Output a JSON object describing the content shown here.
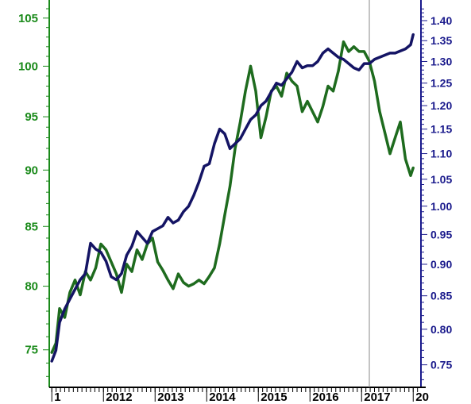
{
  "chart_data": {
    "type": "line",
    "grid": false,
    "legend": "none",
    "colors": {
      "left_axis": "#1a8a1a",
      "right_axis": "#1a1a8c",
      "green_series": "#1e6b1e",
      "navy_series": "#141464",
      "marker_line": "#888888"
    },
    "left_axis": {
      "ticks": [
        "75",
        "80",
        "85",
        "90",
        "95",
        "100",
        "105"
      ],
      "tick_values": [
        75,
        80,
        85,
        90,
        95,
        100,
        105
      ],
      "scale": "log",
      "range": [
        72.2,
        106.6
      ]
    },
    "right_axis": {
      "ticks": [
        "0.75",
        "0.80",
        "0.85",
        "0.90",
        "0.95",
        "1.00",
        "1.05",
        "1.10",
        "1.15",
        "1.20",
        "1.25",
        "1.30",
        "1.35",
        "1.40"
      ],
      "tick_values": [
        0.75,
        0.8,
        0.85,
        0.9,
        0.95,
        1.0,
        1.05,
        1.1,
        1.15,
        1.2,
        1.25,
        1.3,
        1.35,
        1.4
      ],
      "scale": "log",
      "range": [
        0.72,
        1.445
      ]
    },
    "x_axis": {
      "labels": [
        "1",
        "2012",
        "2013",
        "2014",
        "2015",
        "2016",
        "2017",
        "20"
      ],
      "label_dates": [
        2011.0,
        2012.0,
        2013.0,
        2014.0,
        2015.0,
        2016.0,
        2017.0,
        2018.0
      ],
      "range": [
        2010.95,
        2018.15
      ]
    },
    "annotations": {
      "vertical_line_at": 2017.15
    },
    "series": [
      {
        "axis": "left",
        "color": "#1e6b1e",
        "x": [
          2011.0,
          2011.08,
          2011.15,
          2011.25,
          2011.35,
          2011.45,
          2011.55,
          2011.65,
          2011.75,
          2011.85,
          2011.95,
          2012.05,
          2012.15,
          2012.25,
          2012.35,
          2012.45,
          2012.55,
          2012.65,
          2012.75,
          2012.85,
          2012.95,
          2013.05,
          2013.15,
          2013.25,
          2013.35,
          2013.45,
          2013.55,
          2013.65,
          2013.75,
          2013.85,
          2013.95,
          2014.05,
          2014.15,
          2014.25,
          2014.35,
          2014.45,
          2014.55,
          2014.65,
          2014.75,
          2014.85,
          2014.95,
          2015.05,
          2015.15,
          2015.25,
          2015.35,
          2015.45,
          2015.55,
          2015.65,
          2015.75,
          2015.85,
          2015.95,
          2016.05,
          2016.15,
          2016.25,
          2016.35,
          2016.45,
          2016.55,
          2016.65,
          2016.75,
          2016.85,
          2016.95,
          2017.05,
          2017.15,
          2017.25,
          2017.35,
          2017.45,
          2017.55,
          2017.65,
          2017.75,
          2017.85,
          2017.95,
          2018.0
        ],
        "y": [
          74.8,
          75.5,
          78.2,
          77.5,
          79.5,
          80.5,
          79.3,
          81.2,
          80.5,
          81.5,
          83.5,
          83.0,
          82.0,
          81.0,
          79.5,
          81.8,
          81.2,
          83.0,
          82.2,
          83.5,
          84.0,
          82.0,
          81.3,
          80.5,
          79.8,
          81.0,
          80.3,
          80.0,
          80.2,
          80.5,
          80.2,
          80.8,
          81.5,
          83.5,
          86.0,
          88.5,
          92.0,
          94.5,
          97.5,
          100.0,
          97.5,
          93.0,
          95.0,
          97.5,
          98.0,
          97.0,
          99.3,
          98.5,
          98.0,
          95.5,
          96.5,
          95.5,
          94.5,
          96.0,
          98.0,
          97.5,
          99.5,
          102.5,
          101.5,
          102.0,
          101.5,
          101.5,
          100.5,
          98.5,
          95.5,
          93.5,
          91.5,
          93.0,
          94.5,
          91.0,
          89.5,
          90.2
        ]
      },
      {
        "axis": "right",
        "color": "#141464",
        "x": [
          2011.0,
          2011.08,
          2011.15,
          2011.25,
          2011.35,
          2011.45,
          2011.55,
          2011.65,
          2011.75,
          2011.85,
          2011.95,
          2012.05,
          2012.15,
          2012.25,
          2012.35,
          2012.45,
          2012.55,
          2012.65,
          2012.75,
          2012.85,
          2012.95,
          2013.05,
          2013.15,
          2013.25,
          2013.35,
          2013.45,
          2013.55,
          2013.65,
          2013.75,
          2013.85,
          2013.95,
          2014.05,
          2014.15,
          2014.25,
          2014.35,
          2014.45,
          2014.55,
          2014.65,
          2014.75,
          2014.85,
          2014.95,
          2015.05,
          2015.15,
          2015.25,
          2015.35,
          2015.45,
          2015.55,
          2015.65,
          2015.75,
          2015.85,
          2015.95,
          2016.05,
          2016.15,
          2016.25,
          2016.35,
          2016.45,
          2016.55,
          2016.65,
          2016.75,
          2016.85,
          2016.95,
          2017.05,
          2017.15,
          2017.25,
          2017.35,
          2017.45,
          2017.55,
          2017.65,
          2017.75,
          2017.85,
          2017.95,
          2018.0
        ],
        "y": [
          0.755,
          0.77,
          0.81,
          0.83,
          0.845,
          0.86,
          0.875,
          0.885,
          0.935,
          0.925,
          0.92,
          0.905,
          0.88,
          0.875,
          0.885,
          0.915,
          0.93,
          0.955,
          0.945,
          0.935,
          0.955,
          0.96,
          0.965,
          0.98,
          0.97,
          0.975,
          0.99,
          1.0,
          1.02,
          1.045,
          1.075,
          1.08,
          1.12,
          1.15,
          1.14,
          1.11,
          1.12,
          1.13,
          1.15,
          1.17,
          1.18,
          1.2,
          1.21,
          1.23,
          1.25,
          1.245,
          1.26,
          1.275,
          1.3,
          1.285,
          1.29,
          1.29,
          1.3,
          1.32,
          1.33,
          1.32,
          1.31,
          1.305,
          1.295,
          1.285,
          1.28,
          1.295,
          1.295,
          1.305,
          1.31,
          1.315,
          1.32,
          1.32,
          1.325,
          1.33,
          1.34,
          1.365
        ]
      }
    ]
  }
}
